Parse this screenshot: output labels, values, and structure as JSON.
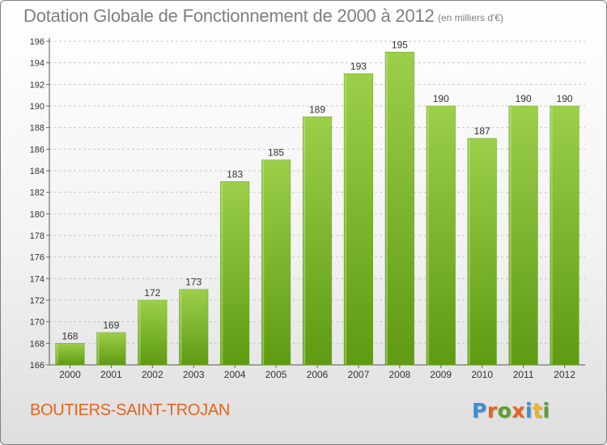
{
  "header": {
    "title": "Dotation Globale de Fonctionnement de 2000 à 2012",
    "unit": "(en milliers d'€)"
  },
  "footer": {
    "town": "BOUTIERS-SAINT-TROJAN",
    "logo_letters": [
      "P",
      "r",
      "o",
      "x",
      "i",
      "t",
      "i"
    ],
    "logo_colors": [
      "#3a8fd6",
      "#e8641b",
      "#5aa02c",
      "#e8641b",
      "#3a8fd6",
      "#f2b21b",
      "#5aa02c"
    ]
  },
  "colors": {
    "bar_light": "#9ccf4a",
    "bar_dark": "#5e9a12",
    "axis_text": "#333333",
    "grid": "#c8c8c8",
    "title": "#7f7f7f",
    "town": "#e8641b"
  },
  "chart_data": {
    "type": "bar",
    "categories": [
      "2000",
      "2001",
      "2002",
      "2003",
      "2004",
      "2005",
      "2006",
      "2007",
      "2008",
      "2009",
      "2010",
      "2011",
      "2012"
    ],
    "values": [
      168,
      169,
      172,
      173,
      183,
      185,
      189,
      193,
      195,
      190,
      187,
      190,
      190
    ],
    "ylim": [
      166,
      196
    ],
    "yticks": [
      166,
      168,
      170,
      172,
      174,
      176,
      178,
      180,
      182,
      184,
      186,
      188,
      190,
      192,
      194,
      196
    ],
    "grid": true,
    "data_labels": true
  }
}
